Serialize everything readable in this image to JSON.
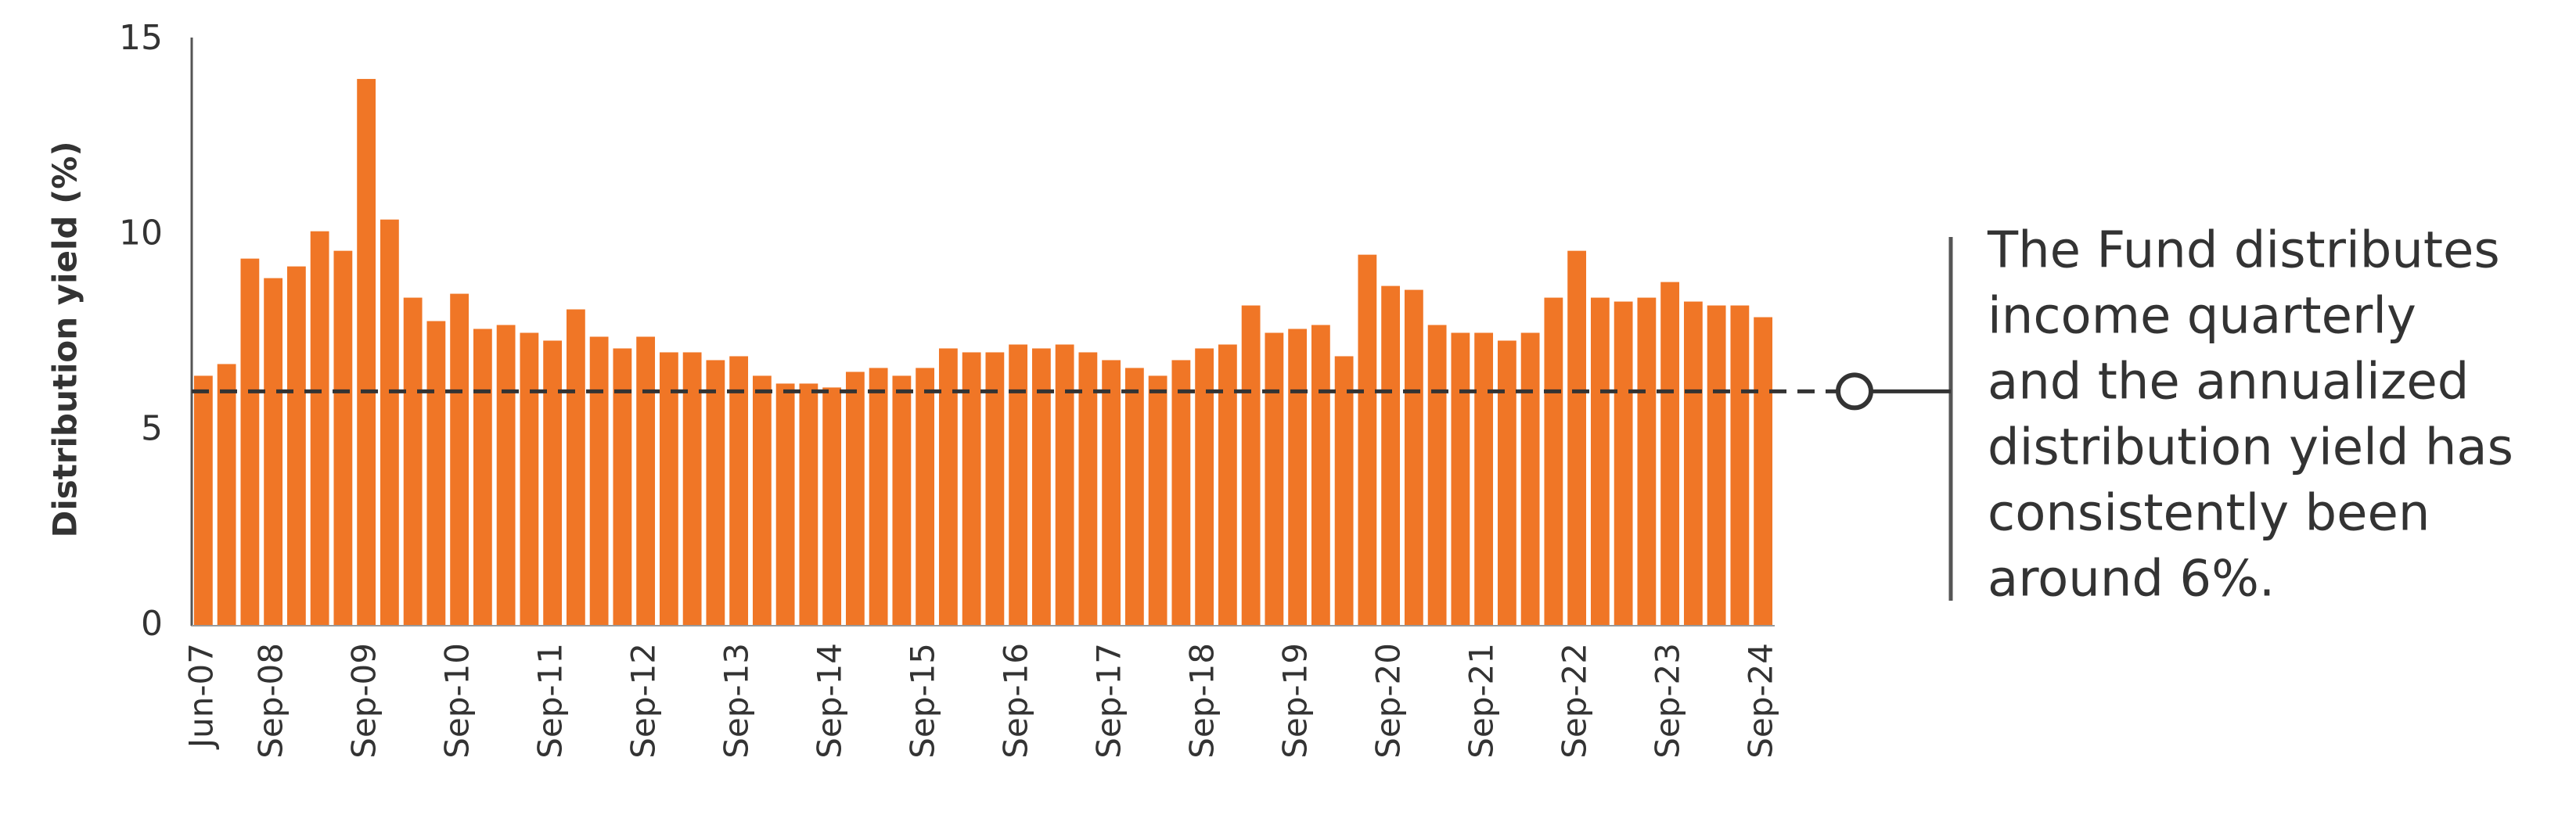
{
  "chart_data": {
    "type": "bar",
    "y_label": "Distribution yield (%)",
    "categories": [
      "Jun-07",
      null,
      null,
      "Sep-08",
      null,
      null,
      null,
      "Sep-09",
      null,
      null,
      null,
      "Sep-10",
      null,
      null,
      null,
      "Sep-11",
      null,
      null,
      null,
      "Sep-12",
      null,
      null,
      null,
      "Sep-13",
      null,
      null,
      null,
      "Sep-14",
      null,
      null,
      null,
      "Sep-15",
      null,
      null,
      null,
      "Sep-16",
      null,
      null,
      null,
      "Sep-17",
      null,
      null,
      null,
      "Sep-18",
      null,
      null,
      null,
      "Sep-19",
      null,
      null,
      null,
      "Sep-20",
      null,
      null,
      null,
      "Sep-21",
      null,
      null,
      null,
      "Sep-22",
      null,
      null,
      null,
      "Sep-23",
      null,
      null,
      null,
      "Sep-24"
    ],
    "values": [
      6.4,
      6.7,
      9.4,
      8.9,
      9.2,
      10.1,
      9.6,
      14.0,
      10.4,
      8.4,
      7.8,
      8.5,
      7.6,
      7.7,
      7.5,
      7.3,
      8.1,
      7.4,
      7.1,
      7.4,
      7.0,
      7.0,
      6.8,
      6.9,
      6.4,
      6.2,
      6.2,
      6.1,
      6.5,
      6.6,
      6.4,
      6.6,
      7.1,
      7.0,
      7.0,
      7.2,
      7.1,
      7.2,
      7.0,
      6.8,
      6.6,
      6.4,
      6.8,
      7.1,
      7.2,
      8.2,
      7.5,
      7.6,
      7.7,
      6.9,
      9.5,
      8.7,
      8.6,
      7.7,
      7.5,
      7.5,
      7.3,
      7.5,
      8.4,
      9.6,
      8.4,
      8.3,
      8.4,
      8.8,
      8.3,
      8.2,
      8.2,
      7.9
    ],
    "color": "#f07626",
    "ylim": [
      0,
      15
    ],
    "yticks": [
      0,
      5,
      10,
      15
    ],
    "grid": false,
    "reference_line": 6,
    "annotation": [
      "The Fund distributes",
      "income quarterly",
      "and the annualized",
      "distribution yield has",
      "consistently been",
      "around 6%."
    ]
  }
}
